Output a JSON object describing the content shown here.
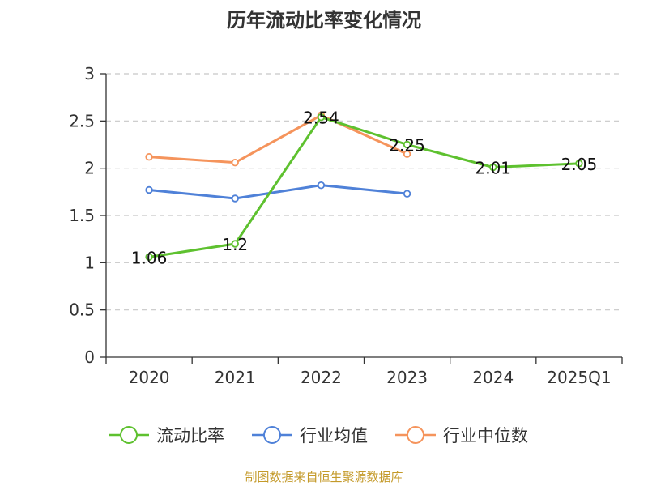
{
  "chart_data": {
    "type": "line",
    "title": "历年流动比率变化情况",
    "xlabel": "",
    "ylabel": "",
    "categories": [
      "2020",
      "2021",
      "2022",
      "2023",
      "2024",
      "2025Q1"
    ],
    "ylim": [
      0,
      3
    ],
    "yticks": [
      "0",
      "0.5",
      "1",
      "1.5",
      "2",
      "2.5",
      "3"
    ],
    "grid": true,
    "legend_position": "bottom",
    "series": [
      {
        "name": "流动比率",
        "color": "#5ec12f",
        "values": [
          1.06,
          1.2,
          2.54,
          2.25,
          2.01,
          2.05
        ],
        "labels": [
          "1.06",
          "1.2",
          "2.54",
          "2.25",
          "2.01",
          "2.05"
        ]
      },
      {
        "name": "行业均值",
        "color": "#4f81d8",
        "values": [
          1.77,
          1.68,
          1.82,
          1.73,
          null,
          null
        ]
      },
      {
        "name": "行业中位数",
        "color": "#f5945c",
        "values": [
          2.12,
          2.06,
          2.56,
          2.15,
          null,
          null
        ]
      }
    ],
    "source": "制图数据来自恒生聚源数据库",
    "source_color": "#c49a2a"
  }
}
